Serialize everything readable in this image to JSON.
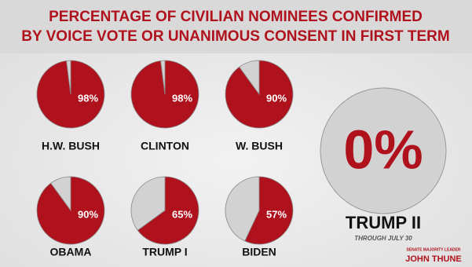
{
  "title_lines": [
    "PERCENTAGE OF CIVILIAN NOMINEES CONFIRMED",
    "BY VOICE VOTE OR UNANIMOUS CONSENT IN FIRST TERM"
  ],
  "logo": {
    "kicker": "SENATE MAJORITY LEADER",
    "name": "JOHN THUNE"
  },
  "chart_data": [
    {
      "type": "pie",
      "title": "H.W. BUSH",
      "values": [
        98,
        2
      ],
      "value_labels": [
        "98%",
        null
      ],
      "colors": [
        "#b0121d",
        "#d2d2d2"
      ]
    },
    {
      "type": "pie",
      "title": "CLINTON",
      "values": [
        98,
        2
      ],
      "value_labels": [
        "98%",
        null
      ],
      "colors": [
        "#b0121d",
        "#d2d2d2"
      ]
    },
    {
      "type": "pie",
      "title": "W. BUSH",
      "values": [
        90,
        10
      ],
      "value_labels": [
        "90%",
        null
      ],
      "colors": [
        "#b0121d",
        "#d2d2d2"
      ]
    },
    {
      "type": "pie",
      "title": "OBAMA",
      "values": [
        90,
        10
      ],
      "value_labels": [
        "90%",
        null
      ],
      "colors": [
        "#b0121d",
        "#d2d2d2"
      ]
    },
    {
      "type": "pie",
      "title": "TRUMP I",
      "values": [
        65,
        35
      ],
      "value_labels": [
        "65%",
        null
      ],
      "colors": [
        "#b0121d",
        "#d2d2d2"
      ]
    },
    {
      "type": "pie",
      "title": "BIDEN",
      "values": [
        57,
        43
      ],
      "value_labels": [
        "57%",
        null
      ],
      "colors": [
        "#b0121d",
        "#d2d2d2"
      ]
    },
    {
      "type": "pie",
      "title": "TRUMP II",
      "subtitle": "THROUGH JULY 30",
      "values": [
        0,
        100
      ],
      "value_labels": [
        "0%",
        null
      ],
      "colors": [
        "#b0121d",
        "#d2d2d2"
      ]
    }
  ]
}
